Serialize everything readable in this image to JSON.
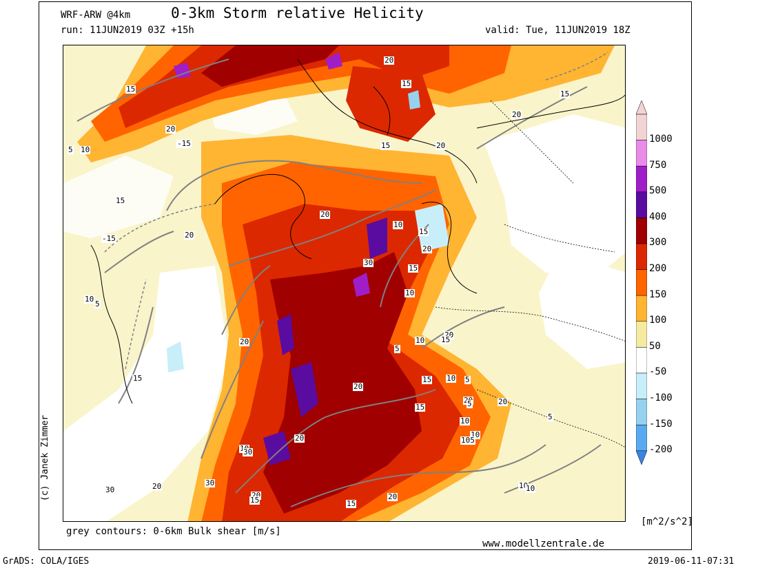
{
  "header": {
    "model": "WRF-ARW @4km",
    "title": "0-3km Storm relative Helicity",
    "run": "run: 11JUN2019 03Z +15h",
    "valid": "valid: Tue, 11JUN2019 18Z"
  },
  "footer": {
    "author": "(c) Janek Zimmer",
    "contours_note": "grey contours: 0-6km Bulk shear [m/s]",
    "website": "www.modellzentrale.de",
    "software": "GrADS: COLA/IGES",
    "timestamp": "2019-06-11-07:31"
  },
  "colorbar": {
    "units": "[m^2/s^2]",
    "levels": [
      {
        "label": "1000",
        "color": "#f2d4d4"
      },
      {
        "label": "750",
        "color": "#e98ce9"
      },
      {
        "label": "500",
        "color": "#a01ec8"
      },
      {
        "label": "400",
        "color": "#5a0ca0"
      },
      {
        "label": "300",
        "color": "#a00000"
      },
      {
        "label": "200",
        "color": "#dc2800"
      },
      {
        "label": "150",
        "color": "#ff6400"
      },
      {
        "label": "100",
        "color": "#ffb432"
      },
      {
        "label": "50",
        "color": "#f5eba0"
      },
      {
        "label": "-50",
        "color": "#ffffff"
      },
      {
        "label": "-100",
        "color": "#c8eefa"
      },
      {
        "label": "-150",
        "color": "#96d2f0"
      },
      {
        "label": "-200",
        "color": "#5aaaf0"
      }
    ],
    "bottom_color": "#3c82e6"
  },
  "contour_labels": [
    "15",
    "20",
    "5",
    "10",
    "-15",
    "15",
    "-15",
    "20",
    "20",
    "30",
    "20",
    "15",
    "10",
    "5",
    "10",
    "30",
    "20",
    "20",
    "30",
    "30",
    "20",
    "20",
    "15",
    "15",
    "20",
    "15",
    "10",
    "15",
    "10",
    "20",
    "5",
    "10",
    "15",
    "10",
    "20",
    "20",
    "105",
    "15",
    "20",
    "15",
    "10",
    "5",
    "5",
    "10",
    "10",
    "10",
    "5",
    "15",
    "20",
    "20",
    "20",
    "15",
    "15"
  ]
}
